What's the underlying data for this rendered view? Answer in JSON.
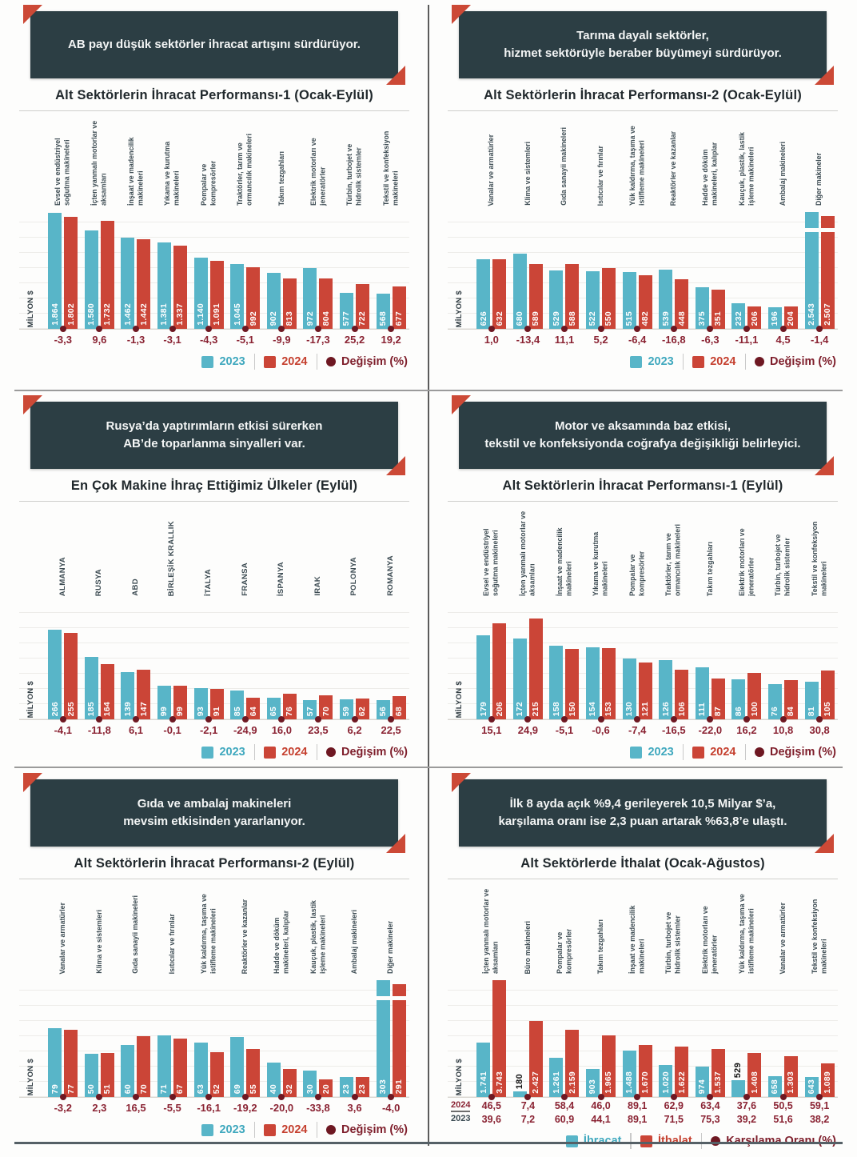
{
  "colors": {
    "teal": "#58B5C8",
    "red": "#CB4537",
    "maroon": "#6E1822",
    "teal_text": "#3FA8BE",
    "red_text": "#C5402F",
    "maroon_text": "#7E1E2B",
    "header_bg": "#2C3E44",
    "fold_red": "#CC4936",
    "change_text": "#8A2333"
  },
  "chart_data": [
    {
      "type": "bar",
      "header_lines": [
        "AB payı düşük sektörler ihracat artışını sürdürüyor."
      ],
      "title": "Alt Sektörlerin İhracat Performansı-1 (Ocak-Eylül)",
      "ylabel": "MİLYON $",
      "ylim": [
        0,
        1950
      ],
      "break_last": false,
      "categories": [
        "Evsel ve endüstriyel soğutma makineleri",
        "İçten yanmalı motorlar ve aksamları",
        "İnşaat ve madencilik makineleri",
        "Yıkama ve kurutma makineleri",
        "Pompalar ve kompresörler",
        "Traktörler, tarım ve ormancılık makineleri",
        "Takım tezgahları",
        "Elektrik motorları ve jeneratörler",
        "Türbin, turbojet ve hidrolik sistemler",
        "Tekstil ve konfeksiyon makineleri"
      ],
      "series": [
        {
          "name": "2023",
          "color": "teal",
          "values": [
            1864,
            1580,
            1462,
            1381,
            1140,
            1045,
            902,
            972,
            577,
            568
          ],
          "labels": [
            "1.864",
            "1.580",
            "1.462",
            "1.381",
            "1.140",
            "1.045",
            "902",
            "972",
            "577",
            "568"
          ],
          "outside_label_indices": []
        },
        {
          "name": "2024",
          "color": "red",
          "values": [
            1802,
            1732,
            1442,
            1337,
            1091,
            992,
            813,
            804,
            722,
            677
          ],
          "labels": [
            "1.802",
            "1.732",
            "1.442",
            "1.337",
            "1.091",
            "992",
            "813",
            "804",
            "722",
            "677"
          ],
          "outside_label_indices": []
        }
      ],
      "changes": [
        "-3,3",
        "9,6",
        "-1,3",
        "-3,1",
        "-4,3",
        "-5,1",
        "-9,9",
        "-17,3",
        "25,2",
        "19,2"
      ],
      "legend": [
        {
          "label": "2023",
          "swatch": "square",
          "color": "teal"
        },
        {
          "label": "2024",
          "swatch": "square",
          "color": "red"
        },
        {
          "label": "Değişim (%)",
          "swatch": "dot",
          "color": "maroon"
        }
      ]
    },
    {
      "type": "bar",
      "header_lines": [
        "Tarıma dayalı sektörler,",
        "hizmet sektörüyle beraber büyümeyi sürdürüyor."
      ],
      "title": "Alt Sektörlerin İhracat Performansı-2 (Ocak-Eylül)",
      "ylabel": "MİLYON $",
      "ylim": [
        0,
        1100
      ],
      "break_last": true,
      "categories": [
        "Vanalar ve armatürler",
        "Klima ve sistemleri",
        "Gıda sanayii makineleri",
        "Isıtıcılar ve fırınlar",
        "Yük kaldırma, taşıma ve istifleme makineleri",
        "Reaktörler ve kazanlar",
        "Hadde ve döküm makineleri, kalıplar",
        "Kauçuk, plastik, lastik işleme makineleri",
        "Ambalaj makineleri",
        "Diğer makineler"
      ],
      "series": [
        {
          "name": "2023",
          "color": "teal",
          "values": [
            626,
            680,
            529,
            522,
            515,
            539,
            375,
            232,
            196,
            2543
          ],
          "labels": [
            "626",
            "680",
            "529",
            "522",
            "515",
            "539",
            "375",
            "232",
            "196",
            "2.543"
          ],
          "outside_label_indices": []
        },
        {
          "name": "2024",
          "color": "red",
          "values": [
            632,
            589,
            588,
            550,
            482,
            448,
            351,
            206,
            204,
            2507
          ],
          "labels": [
            "632",
            "589",
            "588",
            "550",
            "482",
            "448",
            "351",
            "206",
            "204",
            "2.507"
          ],
          "outside_label_indices": []
        }
      ],
      "changes": [
        "1,0",
        "-13,4",
        "11,1",
        "5,2",
        "-6,4",
        "-16,8",
        "-6,3",
        "-11,1",
        "4,5",
        "-1,4"
      ],
      "legend": [
        {
          "label": "2023",
          "swatch": "square",
          "color": "teal"
        },
        {
          "label": "2024",
          "swatch": "square",
          "color": "red"
        },
        {
          "label": "Değişim (%)",
          "swatch": "dot",
          "color": "maroon"
        }
      ]
    },
    {
      "type": "bar",
      "header_lines": [
        "Rusya’da yaptırımların etkisi sürerken",
        "AB’de toparlanma sinyalleri var."
      ],
      "title": "En Çok Makine İhraç Ettiğimiz Ülkeler (Eylül)",
      "ylabel": "MİLYON $",
      "ylim": [
        0,
        360
      ],
      "break_last": false,
      "categories": [
        "ALMANYA",
        "RUSYA",
        "ABD",
        "BİRLEŞİK KRALLIK",
        "İTALYA",
        "FRANSA",
        "İSPANYA",
        "IRAK",
        "POLONYA",
        "ROMANYA"
      ],
      "series": [
        {
          "name": "2023",
          "color": "teal",
          "values": [
            266,
            185,
            139,
            99,
            93,
            85,
            65,
            57,
            59,
            56
          ],
          "labels": [
            "266",
            "185",
            "139",
            "99",
            "93",
            "85",
            "65",
            "57",
            "59",
            "56"
          ],
          "outside_label_indices": []
        },
        {
          "name": "2024",
          "color": "red",
          "values": [
            255,
            164,
            147,
            99,
            91,
            64,
            76,
            70,
            62,
            68
          ],
          "labels": [
            "255",
            "164",
            "147",
            "99",
            "91",
            "64",
            "76",
            "70",
            "62",
            "68"
          ],
          "outside_label_indices": []
        }
      ],
      "changes": [
        "-4,1",
        "-11,8",
        "6,1",
        "-0,1",
        "-2,1",
        "-24,9",
        "16,0",
        "23,5",
        "6,2",
        "22,5"
      ],
      "legend": [
        {
          "label": "2023",
          "swatch": "square",
          "color": "teal"
        },
        {
          "label": "2024",
          "swatch": "square",
          "color": "red"
        },
        {
          "label": "Değişim (%)",
          "swatch": "dot",
          "color": "maroon"
        }
      ]
    },
    {
      "type": "bar",
      "header_lines": [
        "Motor ve aksamında baz etkisi,",
        "tekstil ve konfeksiyonda coğrafya değişikliği belirleyici."
      ],
      "title": "Alt Sektörlerin İhracat Performansı-1 (Eylül)",
      "ylabel": "MİLYON $",
      "ylim": [
        0,
        260
      ],
      "break_last": false,
      "categories": [
        "Evsel ve endüstriyel soğutma makineleri",
        "İçten yanmalı motorlar ve aksamları",
        "İnşaat ve madencilik makineleri",
        "Yıkama ve kurutma makineleri",
        "Pompalar ve kompresörler",
        "Traktörler, tarım ve ormancılık makineleri",
        "Takım tezgahları",
        "Elektrik motorları ve jeneratörler",
        "Türbin, turbojet ve hidrolik sistemler",
        "Tekstil ve konfeksiyon makineleri"
      ],
      "series": [
        {
          "name": "2023",
          "color": "teal",
          "values": [
            179,
            172,
            158,
            154,
            130,
            126,
            111,
            86,
            76,
            81
          ],
          "labels": [
            "179",
            "172",
            "158",
            "154",
            "130",
            "126",
            "111",
            "86",
            "76",
            "81"
          ],
          "outside_label_indices": []
        },
        {
          "name": "2024",
          "color": "red",
          "values": [
            206,
            215,
            150,
            153,
            121,
            106,
            87,
            100,
            84,
            105
          ],
          "labels": [
            "206",
            "215",
            "150",
            "153",
            "121",
            "106",
            "87",
            "100",
            "84",
            "105"
          ],
          "outside_label_indices": []
        }
      ],
      "changes": [
        "15,1",
        "24,9",
        "-5,1",
        "-0,6",
        "-7,4",
        "-16,5",
        "-22,0",
        "16,2",
        "10,8",
        "30,8"
      ],
      "legend": [
        {
          "label": "2023",
          "swatch": "square",
          "color": "teal"
        },
        {
          "label": "2024",
          "swatch": "square",
          "color": "red"
        },
        {
          "label": "Değişim (%)",
          "swatch": "dot",
          "color": "maroon"
        }
      ]
    },
    {
      "type": "bar",
      "header_lines": [
        "Gıda ve ambalaj makineleri",
        "mevsim etkisinden yararlanıyor."
      ],
      "title": "Alt Sektörlerin İhracat Performansı-2 (Eylül)",
      "ylabel": "MİLYON $",
      "ylim": [
        0,
        140
      ],
      "break_last": true,
      "categories": [
        "Vanalar ve armatürler",
        "Klima ve sistemleri",
        "Gıda sanayii makineleri",
        "Isıtıcılar ve fırınlar",
        "Yük kaldırma, taşıma ve istifleme makineleri",
        "Reaktörler ve kazanlar",
        "Hadde ve döküm makineleri, kalıplar",
        "Kauçuk, plastik, lastik işleme makineleri",
        "Ambalaj makineleri",
        "Diğer makineler"
      ],
      "series": [
        {
          "name": "2023",
          "color": "teal",
          "values": [
            79,
            50,
            60,
            71,
            63,
            69,
            40,
            30,
            23,
            303
          ],
          "labels": [
            "79",
            "50",
            "60",
            "71",
            "63",
            "69",
            "40",
            "30",
            "23",
            "303"
          ],
          "outside_label_indices": []
        },
        {
          "name": "2024",
          "color": "red",
          "values": [
            77,
            51,
            70,
            67,
            52,
            55,
            32,
            20,
            23,
            291
          ],
          "labels": [
            "77",
            "51",
            "70",
            "67",
            "52",
            "55",
            "32",
            "20",
            "23",
            "291"
          ],
          "outside_label_indices": []
        }
      ],
      "changes": [
        "-3,2",
        "2,3",
        "16,5",
        "-5,5",
        "-16,1",
        "-19,2",
        "-20,0",
        "-33,8",
        "3,6",
        "-4,0"
      ],
      "legend": [
        {
          "label": "2023",
          "swatch": "square",
          "color": "teal"
        },
        {
          "label": "2024",
          "swatch": "square",
          "color": "red"
        },
        {
          "label": "Değişim (%)",
          "swatch": "dot",
          "color": "maroon"
        }
      ]
    },
    {
      "type": "bar",
      "header_lines": [
        "İlk 8 ayda açık %9,4 gerileyerek 10,5 Milyar $’a,",
        "karşılama oranı ise 2,3 puan artarak %63,8’e ulaştı."
      ],
      "title": "Alt Sektörlerde İthalat (Ocak-Ağustos)",
      "ylabel": "MİLYON $",
      "ylim": [
        0,
        3900
      ],
      "break_last": false,
      "categories": [
        "İçten yanmalı motorlar ve aksamları",
        "Büro makineleri",
        "Pompalar ve kompresörler",
        "Takım tezgahları",
        "İnşaat ve madencilik makineleri",
        "Türbin, turbojet ve hidrolik sistemler",
        "Elektrik motorları ve jeneratörler",
        "Yük kaldırma, taşıma ve istifleme makineleri",
        "Vanalar ve armatürler",
        "Tekstil ve konfeksiyon makineleri"
      ],
      "series": [
        {
          "name": "İhracat",
          "color": "teal",
          "values": [
            1741,
            180,
            1261,
            903,
            1488,
            1020,
            974,
            529,
            658,
            643
          ],
          "labels": [
            "1.741",
            "180",
            "1.261",
            "903",
            "1.488",
            "1.020",
            "974",
            "529",
            "658",
            "643"
          ],
          "outside_label_indices": [
            1,
            7
          ]
        },
        {
          "name": "İthalat",
          "color": "red",
          "values": [
            3743,
            2427,
            2159,
            1965,
            1670,
            1622,
            1537,
            1408,
            1303,
            1089
          ],
          "labels": [
            "3.743",
            "2.427",
            "2.159",
            "1.965",
            "1.670",
            "1.622",
            "1.537",
            "1.408",
            "1.303",
            "1.089"
          ],
          "outside_label_indices": []
        }
      ],
      "change_rows": [
        {
          "label": "2024",
          "values": [
            "46,5",
            "7,4",
            "58,4",
            "46,0",
            "89,1",
            "62,9",
            "63,4",
            "37,6",
            "50,5",
            "59,1"
          ]
        },
        {
          "label": "2023",
          "values": [
            "39,6",
            "7,2",
            "60,9",
            "44,1",
            "89,1",
            "71,5",
            "75,3",
            "39,2",
            "51,6",
            "38,2"
          ]
        }
      ],
      "legend": [
        {
          "label": "İhracat",
          "swatch": "square",
          "color": "teal"
        },
        {
          "label": "İthalat",
          "swatch": "square",
          "color": "red"
        },
        {
          "label": "Karşılama Oranı (%)",
          "swatch": "dot",
          "color": "maroon"
        }
      ]
    }
  ]
}
